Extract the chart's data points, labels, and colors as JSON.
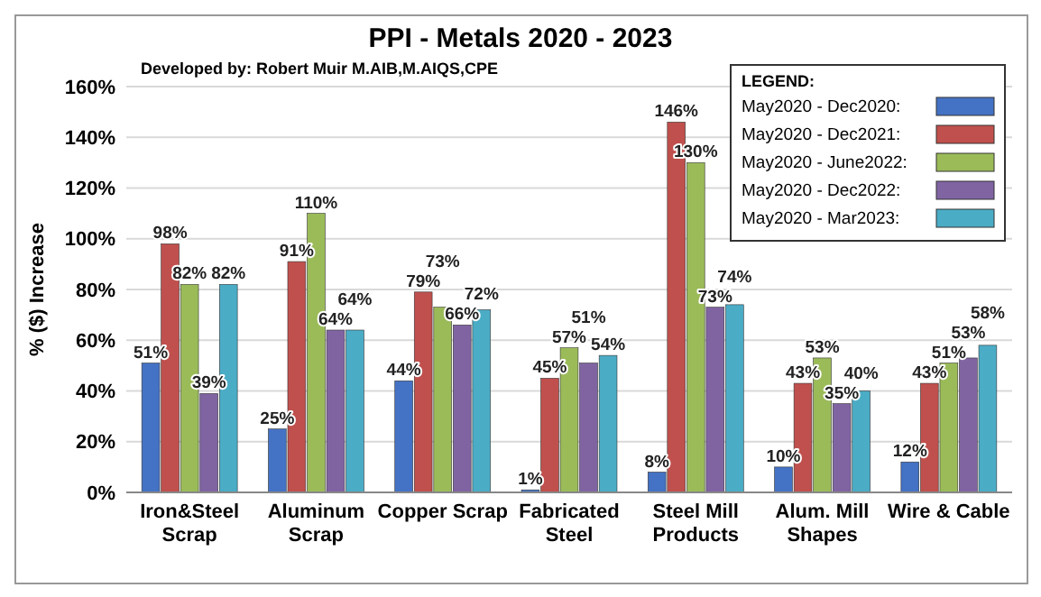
{
  "chart_data": {
    "type": "bar",
    "title": "PPI - Metals 2020 - 2023",
    "subtitle": "Developed by: Robert Muir M.AIB,M.AIQS,CPE",
    "ylabel": "% ($) Increase",
    "legend_title": "LEGEND:",
    "categories": [
      "Iron&Steel Scrap",
      "Aluminum Scrap",
      "Copper Scrap",
      "Fabricated Steel",
      "Steel Mill Products",
      "Alum. Mill Shapes",
      "Wire & Cable"
    ],
    "series": [
      {
        "name": "May2020 - Dec2020:",
        "color": "#4472c4",
        "values": [
          51,
          25,
          44,
          1,
          8,
          10,
          12
        ],
        "value_labels": [
          "51%",
          "25%",
          "44%",
          "1%",
          "8%",
          "10%",
          "12%"
        ]
      },
      {
        "name": "May2020 - Dec2021:",
        "color": "#c0504d",
        "values": [
          98,
          91,
          79,
          45,
          146,
          43,
          43
        ],
        "value_labels": [
          "98%",
          "91%",
          "79%",
          "45%",
          "146%",
          "43%",
          "43%"
        ]
      },
      {
        "name": "May2020 - June2022:",
        "color": "#9bbb59",
        "values": [
          82,
          110,
          73,
          57,
          130,
          53,
          51
        ],
        "value_labels": [
          "82%",
          "110%",
          "73%",
          "57%",
          "130%",
          "53%",
          "51%"
        ]
      },
      {
        "name": "May2020 - Dec2022:",
        "color": "#8064a2",
        "values": [
          39,
          64,
          66,
          51,
          73,
          35,
          53
        ],
        "value_labels": [
          "39%",
          "64%",
          "66%",
          "51%",
          "73%",
          "35%",
          "53%"
        ]
      },
      {
        "name": "May2020 - Mar2023:",
        "color": "#4bacc6",
        "values": [
          82,
          64,
          72,
          54,
          74,
          40,
          58
        ],
        "value_labels": [
          "82%",
          "64%",
          "72%",
          "54%",
          "74%",
          "40%",
          "58%"
        ]
      }
    ],
    "ylim": [
      0,
      160
    ],
    "yticks": [
      {
        "value": 0,
        "label": "0%"
      },
      {
        "value": 20,
        "label": "20%"
      },
      {
        "value": 40,
        "label": "40%"
      },
      {
        "value": 60,
        "label": "60%"
      },
      {
        "value": 80,
        "label": "80%"
      },
      {
        "value": 100,
        "label": "100%"
      },
      {
        "value": 120,
        "label": "120%"
      },
      {
        "value": 140,
        "label": "140%"
      },
      {
        "value": 160,
        "label": "160%"
      }
    ],
    "grid": "y",
    "legend": "top right"
  }
}
